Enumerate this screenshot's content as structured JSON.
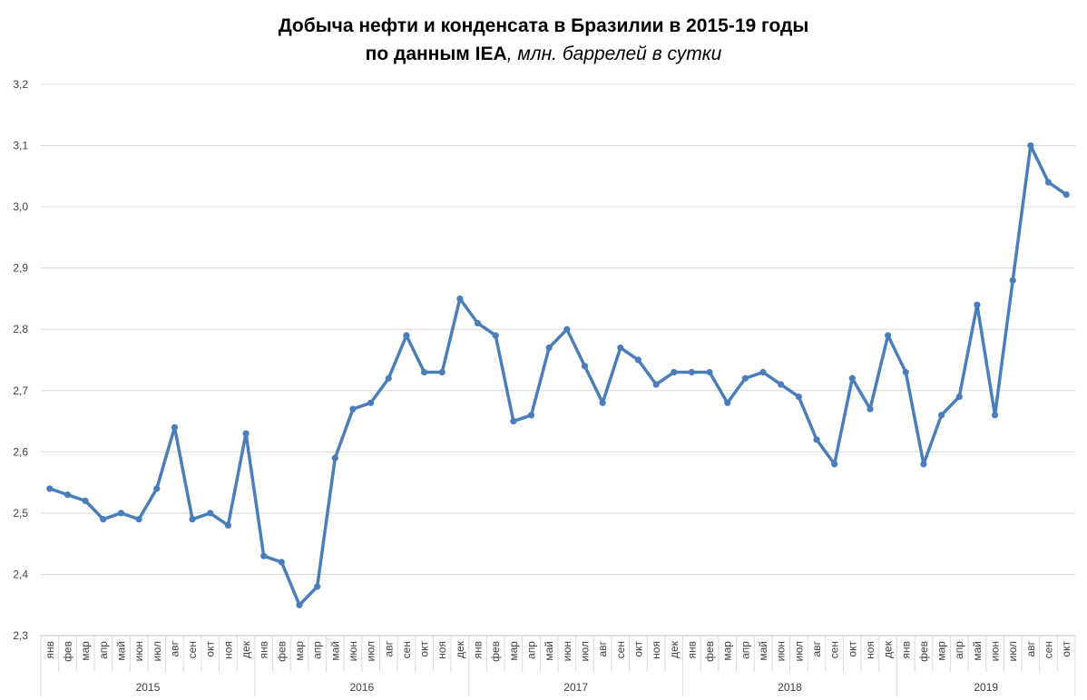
{
  "chart_data": {
    "type": "line",
    "title": "Добыча нефти и конденсата в Бразилии в 2015-19 годы",
    "subtitle": "по данным IEA",
    "subtitle_note": ", млн. баррелей в сутки",
    "categories": [
      "янв",
      "фев",
      "мар",
      "апр",
      "май",
      "июн",
      "июл",
      "авг",
      "сен",
      "окт",
      "ноя",
      "дек",
      "янв",
      "фев",
      "мар",
      "апр",
      "май",
      "июн",
      "июл",
      "авг",
      "сен",
      "окт",
      "ноя",
      "дек",
      "янв",
      "фев",
      "мар",
      "апр",
      "май",
      "июн",
      "июл",
      "авг",
      "сен",
      "окт",
      "ноя",
      "дек",
      "янв",
      "фев",
      "мар",
      "апр",
      "май",
      "июн",
      "июл",
      "авг",
      "сен",
      "окт",
      "ноя",
      "дек",
      "янв",
      "фев",
      "мар",
      "апр",
      "май",
      "июн",
      "июл",
      "авг",
      "сен",
      "окт"
    ],
    "years": [
      "2015",
      "2016",
      "2017",
      "2018",
      "2019"
    ],
    "values": [
      2.54,
      2.53,
      2.52,
      2.49,
      2.5,
      2.49,
      2.54,
      2.64,
      2.49,
      2.5,
      2.48,
      2.63,
      2.43,
      2.42,
      2.35,
      2.38,
      2.59,
      2.67,
      2.68,
      2.72,
      2.79,
      2.73,
      2.73,
      2.85,
      2.81,
      2.79,
      2.65,
      2.66,
      2.77,
      2.8,
      2.74,
      2.68,
      2.77,
      2.75,
      2.71,
      2.73,
      2.73,
      2.73,
      2.68,
      2.72,
      2.73,
      2.71,
      2.69,
      2.62,
      2.58,
      2.72,
      2.67,
      2.79,
      2.73,
      2.58,
      2.66,
      2.69,
      2.84,
      2.66,
      2.88,
      3.1,
      3.04,
      3.02
    ],
    "color": "#4a7ebb",
    "ylim": [
      2.3,
      3.2
    ],
    "yticks": [
      {
        "value": 2.3,
        "label": "2,3"
      },
      {
        "value": 2.4,
        "label": "2,4"
      },
      {
        "value": 2.5,
        "label": "2,5"
      },
      {
        "value": 2.6,
        "label": "2,6"
      },
      {
        "value": 2.7,
        "label": "2,7"
      },
      {
        "value": 2.8,
        "label": "2,8"
      },
      {
        "value": 2.9,
        "label": "2,9"
      },
      {
        "value": 3.0,
        "label": "3,0"
      },
      {
        "value": 3.1,
        "label": "3,1"
      },
      {
        "value": 3.2,
        "label": "3,2"
      }
    ],
    "grid": true
  }
}
